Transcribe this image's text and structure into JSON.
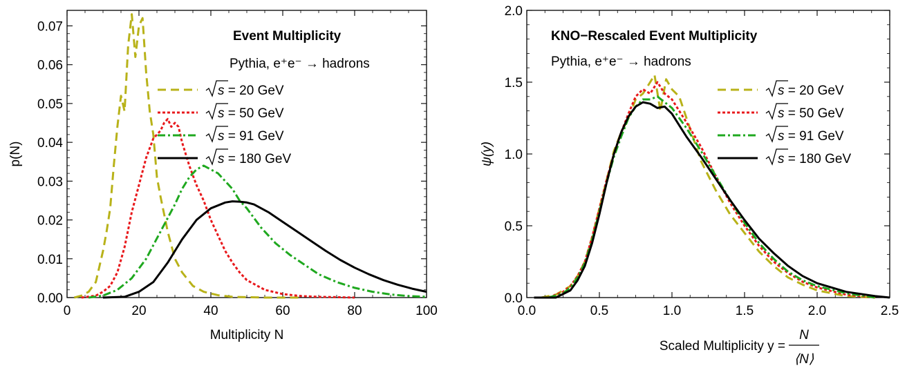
{
  "chart_data": [
    {
      "type": "line",
      "title": "Event Multiplicity",
      "subtitle": "Pythia, e⁺e⁻ → hadrons",
      "xlabel": "Multiplicity N",
      "ylabel": "p(N)",
      "xlim": [
        0,
        100
      ],
      "ylim": [
        0,
        0.074
      ],
      "xticks": [
        "0",
        "20",
        "40",
        "60",
        "80",
        "100"
      ],
      "yticks": [
        "0.00",
        "0.01",
        "0.02",
        "0.03",
        "0.04",
        "0.05",
        "0.06",
        "0.07"
      ],
      "legend_position": "top-right",
      "series": [
        {
          "name_prefix": "√",
          "name_var": "s",
          "name_suffix": " = 20 GeV",
          "color": "#b8b219",
          "dash": "12,7",
          "x": [
            2,
            4,
            6,
            8,
            10,
            11,
            12,
            13,
            14,
            15,
            16,
            17,
            18,
            19,
            20,
            21,
            22,
            23,
            24,
            25,
            26,
            28,
            30,
            32,
            35,
            38,
            42,
            46,
            50,
            55,
            60,
            65
          ],
          "y": [
            0.0,
            0.0005,
            0.0015,
            0.004,
            0.012,
            0.017,
            0.023,
            0.034,
            0.044,
            0.052,
            0.048,
            0.065,
            0.073,
            0.062,
            0.07,
            0.072,
            0.058,
            0.048,
            0.042,
            0.031,
            0.026,
            0.017,
            0.01,
            0.0065,
            0.003,
            0.0015,
            0.0006,
            0.0002,
            0.0001,
            0.0,
            0.0,
            0.0
          ]
        },
        {
          "name_prefix": "√",
          "name_var": "s",
          "name_suffix": " = 50 GeV",
          "color": "#e8191c",
          "dash": "4,3",
          "x": [
            4,
            8,
            10,
            12,
            14,
            16,
            18,
            20,
            22,
            24,
            26,
            27,
            28,
            29,
            30,
            31,
            32,
            34,
            36,
            38,
            40,
            42,
            44,
            46,
            48,
            50,
            55,
            60,
            65,
            70,
            75,
            80
          ],
          "y": [
            0.0,
            0.0005,
            0.0015,
            0.003,
            0.0065,
            0.013,
            0.022,
            0.029,
            0.036,
            0.041,
            0.043,
            0.045,
            0.046,
            0.044,
            0.045,
            0.044,
            0.04,
            0.034,
            0.029,
            0.025,
            0.02,
            0.016,
            0.012,
            0.009,
            0.0065,
            0.0045,
            0.002,
            0.0009,
            0.0004,
            0.0002,
            0.0001,
            0.0
          ]
        },
        {
          "name_prefix": "√",
          "name_var": "s",
          "name_suffix": " = 91 GeV",
          "color": "#1fa81f",
          "dash": "11,4,3,4",
          "x": [
            6,
            10,
            14,
            18,
            22,
            26,
            30,
            32,
            34,
            36,
            38,
            40,
            42,
            44,
            46,
            48,
            50,
            54,
            58,
            62,
            66,
            70,
            75,
            80,
            85,
            90,
            95,
            100
          ],
          "y": [
            0.0,
            0.0005,
            0.002,
            0.005,
            0.01,
            0.017,
            0.024,
            0.028,
            0.031,
            0.033,
            0.034,
            0.033,
            0.032,
            0.03,
            0.028,
            0.025,
            0.023,
            0.018,
            0.014,
            0.011,
            0.0085,
            0.006,
            0.004,
            0.0025,
            0.0015,
            0.0008,
            0.0004,
            0.0002
          ]
        },
        {
          "name_prefix": "√",
          "name_var": "s",
          "name_suffix": " = 180 GeV",
          "color": "#000000",
          "dash": "",
          "x": [
            10,
            16,
            20,
            24,
            28,
            32,
            36,
            40,
            44,
            46,
            48,
            50,
            52,
            54,
            56,
            60,
            64,
            68,
            72,
            76,
            80,
            84,
            88,
            92,
            96,
            100
          ],
          "y": [
            0.0,
            0.0002,
            0.0015,
            0.004,
            0.009,
            0.015,
            0.02,
            0.023,
            0.0245,
            0.0248,
            0.0247,
            0.0245,
            0.024,
            0.023,
            0.022,
            0.0195,
            0.017,
            0.0145,
            0.012,
            0.0097,
            0.0077,
            0.006,
            0.0045,
            0.0033,
            0.0023,
            0.0015
          ]
        }
      ]
    },
    {
      "type": "line",
      "title": "KNO−Rescaled Event Multiplicity",
      "subtitle": "Pythia, e⁺e⁻ → hadrons",
      "xlabel": "Scaled Multiplicity y = ",
      "xlabel_num": "N",
      "xlabel_den": "⟨N⟩",
      "ylabel": "ψ(y)",
      "xlim": [
        0,
        2.5
      ],
      "ylim": [
        0,
        2.0
      ],
      "xticks": [
        "0.0",
        "0.5",
        "1.0",
        "1.5",
        "2.0",
        "2.5"
      ],
      "yticks": [
        "0.0",
        "0.5",
        "1.0",
        "1.5",
        "2.0"
      ],
      "legend_position": "top-right",
      "series": [
        {
          "name_prefix": "√",
          "name_var": "s",
          "name_suffix": " = 20 GeV",
          "color": "#b8b219",
          "dash": "12,7",
          "x": [
            0.1,
            0.2,
            0.3,
            0.35,
            0.4,
            0.45,
            0.5,
            0.55,
            0.6,
            0.65,
            0.7,
            0.75,
            0.8,
            0.85,
            0.88,
            0.92,
            0.96,
            1.0,
            1.05,
            1.1,
            1.15,
            1.2,
            1.3,
            1.4,
            1.5,
            1.6,
            1.7,
            1.8,
            1.9,
            2.0,
            2.2,
            2.4
          ],
          "y": [
            0.0,
            0.02,
            0.08,
            0.15,
            0.25,
            0.42,
            0.62,
            0.82,
            1.02,
            1.15,
            1.25,
            1.38,
            1.42,
            1.5,
            1.55,
            1.3,
            1.52,
            1.45,
            1.4,
            1.25,
            1.1,
            0.95,
            0.75,
            0.58,
            0.45,
            0.32,
            0.22,
            0.14,
            0.09,
            0.05,
            0.01,
            0.0
          ]
        },
        {
          "name_prefix": "√",
          "name_var": "s",
          "name_suffix": " = 50 GeV",
          "color": "#e8191c",
          "dash": "4,3",
          "x": [
            0.15,
            0.25,
            0.3,
            0.35,
            0.4,
            0.45,
            0.5,
            0.55,
            0.6,
            0.65,
            0.7,
            0.75,
            0.8,
            0.85,
            0.9,
            0.95,
            1.0,
            1.05,
            1.1,
            1.2,
            1.3,
            1.4,
            1.5,
            1.6,
            1.7,
            1.8,
            1.9,
            2.0,
            2.2,
            2.4
          ],
          "y": [
            0.0,
            0.04,
            0.08,
            0.15,
            0.25,
            0.42,
            0.62,
            0.82,
            1.0,
            1.15,
            1.28,
            1.4,
            1.45,
            1.42,
            1.5,
            1.42,
            1.38,
            1.3,
            1.22,
            1.05,
            0.85,
            0.66,
            0.5,
            0.36,
            0.25,
            0.17,
            0.11,
            0.07,
            0.02,
            0.0
          ]
        },
        {
          "name_prefix": "√",
          "name_var": "s",
          "name_suffix": " = 91 GeV",
          "color": "#1fa81f",
          "dash": "11,4,3,4",
          "x": [
            0.15,
            0.25,
            0.3,
            0.35,
            0.4,
            0.45,
            0.5,
            0.55,
            0.6,
            0.65,
            0.7,
            0.75,
            0.8,
            0.85,
            0.9,
            0.95,
            1.0,
            1.05,
            1.1,
            1.2,
            1.3,
            1.4,
            1.5,
            1.6,
            1.7,
            1.8,
            1.9,
            2.0,
            2.2,
            2.4
          ],
          "y": [
            0.0,
            0.03,
            0.07,
            0.14,
            0.24,
            0.4,
            0.6,
            0.8,
            0.98,
            1.12,
            1.25,
            1.33,
            1.38,
            1.38,
            1.4,
            1.36,
            1.32,
            1.25,
            1.18,
            1.02,
            0.85,
            0.68,
            0.52,
            0.38,
            0.27,
            0.18,
            0.12,
            0.08,
            0.03,
            0.0
          ]
        },
        {
          "name_prefix": "√",
          "name_var": "s",
          "name_suffix": " = 180 GeV",
          "color": "#000000",
          "dash": "",
          "x": [
            0.05,
            0.2,
            0.3,
            0.35,
            0.4,
            0.45,
            0.5,
            0.55,
            0.6,
            0.65,
            0.7,
            0.75,
            0.8,
            0.85,
            0.9,
            0.95,
            1.0,
            1.05,
            1.1,
            1.2,
            1.3,
            1.4,
            1.5,
            1.6,
            1.7,
            1.8,
            1.9,
            2.0,
            2.2,
            2.4,
            2.5
          ],
          "y": [
            0.0,
            0.0,
            0.05,
            0.12,
            0.22,
            0.38,
            0.58,
            0.8,
            1.0,
            1.15,
            1.26,
            1.33,
            1.36,
            1.35,
            1.32,
            1.33,
            1.28,
            1.2,
            1.12,
            0.98,
            0.83,
            0.68,
            0.54,
            0.41,
            0.31,
            0.22,
            0.15,
            0.1,
            0.04,
            0.01,
            0.0
          ]
        }
      ]
    }
  ]
}
